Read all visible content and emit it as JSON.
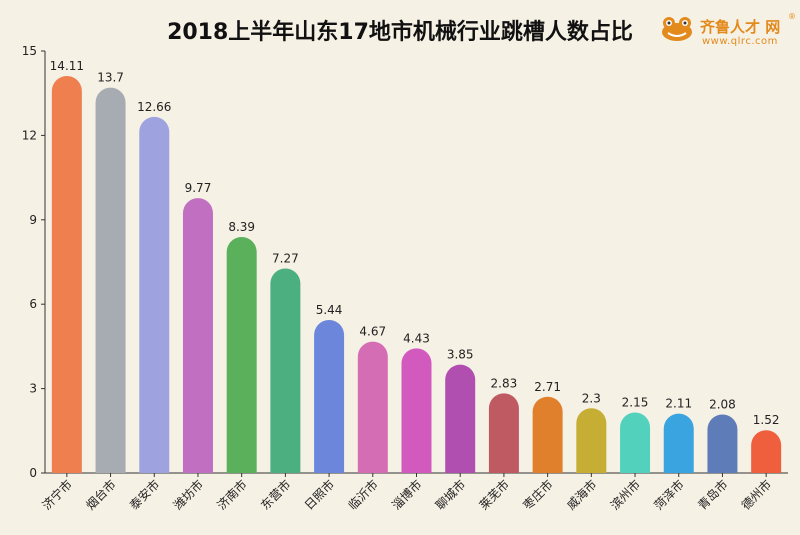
{
  "chart_data": {
    "type": "bar",
    "title": "2018上半年山东17地市机械行业跳槽人数占比",
    "categories": [
      "济宁市",
      "烟台市",
      "泰安市",
      "潍坊市",
      "济南市",
      "东营市",
      "日照市",
      "临沂市",
      "淄博市",
      "聊城市",
      "莱芜市",
      "枣庄市",
      "威海市",
      "滨州市",
      "菏泽市",
      "青岛市",
      "德州市"
    ],
    "values": [
      14.11,
      13.7,
      12.66,
      9.77,
      8.39,
      7.27,
      5.44,
      4.67,
      4.43,
      3.85,
      2.83,
      2.71,
      2.3,
      2.15,
      2.11,
      2.08,
      1.52
    ],
    "value_labels": [
      "14.11",
      "13.7",
      "12.66",
      "9.77",
      "8.39",
      "7.27",
      "5.44",
      "4.67",
      "4.43",
      "3.85",
      "2.83",
      "2.71",
      "2.3",
      "2.15",
      "2.11",
      "2.08",
      "1.52"
    ],
    "colors": [
      "#f07f50",
      "#a7abb2",
      "#9ea3df",
      "#c06fc1",
      "#5bb05b",
      "#4caf80",
      "#6c86dc",
      "#d56db5",
      "#d259bd",
      "#b04faf",
      "#c05a62",
      "#e0802c",
      "#c6ad34",
      "#52d2bd",
      "#3aa4e0",
      "#5e7cb8",
      "#ef5f3e"
    ],
    "yticks": [
      0,
      3,
      6,
      9,
      12,
      15
    ],
    "ylim": [
      0,
      15
    ],
    "grid": false,
    "xlabel": "",
    "ylabel": ""
  },
  "logo": {
    "brand": "齐鲁人才",
    "reg": "®",
    "suffix": "网",
    "url": "www.qlrc.com"
  }
}
